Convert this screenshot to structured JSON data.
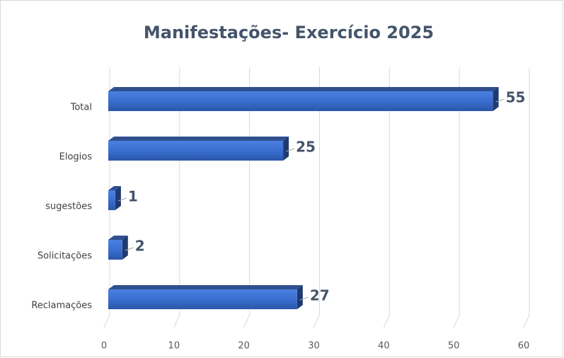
{
  "chart_data": {
    "type": "bar",
    "orientation": "horizontal",
    "title": "Manifestações- Exercício 2025",
    "categories": [
      "Total",
      "Elogios",
      "sugestões",
      "Solicitações",
      "Reclamações"
    ],
    "values": [
      55,
      25,
      1,
      2,
      27
    ],
    "color": "#3a6fd0",
    "xlim": [
      0,
      60
    ],
    "xticks": [
      0,
      10,
      20,
      30,
      40,
      50,
      60
    ],
    "grid": true
  }
}
